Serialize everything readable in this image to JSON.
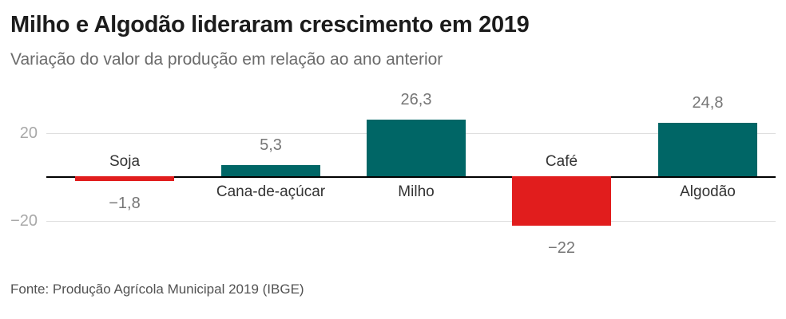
{
  "header": {
    "title": "Milho e Algodão lideraram crescimento em 2019",
    "subtitle": "Variação do valor da produção em relação ao ano anterior"
  },
  "chart_data": {
    "type": "bar",
    "title": "Milho e Algodão lideraram crescimento em 2019",
    "subtitle": "Variação do valor da produção em relação ao ano anterior",
    "categories": [
      "Soja",
      "Cana-de-açúcar",
      "Milho",
      "Café",
      "Algodão"
    ],
    "values": [
      -1.8,
      5.3,
      26.3,
      -22,
      24.8
    ],
    "value_labels": [
      "−1,8",
      "5,3",
      "26,3",
      "−22",
      "24,8"
    ],
    "xlabel": "",
    "ylabel": "",
    "ylim": [
      -30,
      36
    ],
    "yticks": [
      {
        "value": 20,
        "label": "20"
      },
      {
        "value": -20,
        "label": "−20"
      }
    ],
    "grid": "horizontal lines at yticks only",
    "legend": "none",
    "zero_axis": true,
    "positive_color": "#006666",
    "negative_color": "#e11d1d",
    "label_style": {
      "category_label_side": "opposite side of zero axis from bar",
      "value_label_side": "at outer end of bar"
    }
  },
  "footer": {
    "source": "Fonte: Produção Agrícola Municipal 2019 (IBGE)"
  }
}
